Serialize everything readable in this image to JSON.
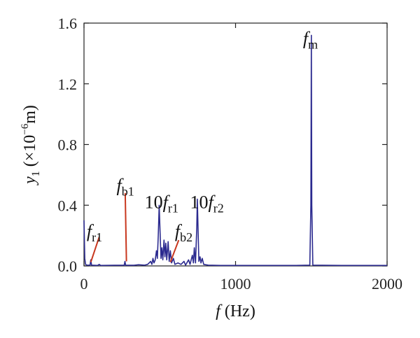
{
  "chart_data": {
    "type": "line",
    "xlabel": {
      "var": "f",
      "unit": "(Hz)"
    },
    "ylabel": {
      "var": "y",
      "sub": "1",
      "unit_open": "(×10",
      "unit_exp": "−6",
      "unit_close": "m)"
    },
    "xlim": [
      0,
      2000
    ],
    "ylim": [
      0,
      1.6
    ],
    "xticks": [
      0,
      1000,
      2000
    ],
    "yticks": [
      0.0,
      0.4,
      0.8,
      1.2,
      1.6
    ],
    "xtick_labels": [
      "0",
      "1000",
      "2000"
    ],
    "ytick_labels": [
      "0.0",
      "0.4",
      "0.8",
      "1.2",
      "1.6"
    ],
    "grid": false,
    "series": [
      {
        "color": "#2b2a8f",
        "points": [
          [
            0,
            0.3
          ],
          [
            5,
            0.05
          ],
          [
            10,
            0.01
          ],
          [
            20,
            0.005
          ],
          [
            40,
            0.005
          ],
          [
            45,
            0.04
          ],
          [
            50,
            0.005
          ],
          [
            90,
            0.003
          ],
          [
            100,
            0.01
          ],
          [
            110,
            0.003
          ],
          [
            200,
            0.004
          ],
          [
            265,
            0.004
          ],
          [
            270,
            0.03
          ],
          [
            275,
            0.004
          ],
          [
            330,
            0.004
          ],
          [
            360,
            0.008
          ],
          [
            400,
            0.005
          ],
          [
            420,
            0.01
          ],
          [
            440,
            0.03
          ],
          [
            448,
            0.01
          ],
          [
            455,
            0.05
          ],
          [
            462,
            0.02
          ],
          [
            470,
            0.04
          ],
          [
            478,
            0.1
          ],
          [
            484,
            0.05
          ],
          [
            490,
            0.2
          ],
          [
            496,
            0.4
          ],
          [
            502,
            0.22
          ],
          [
            508,
            0.05
          ],
          [
            514,
            0.12
          ],
          [
            520,
            0.04
          ],
          [
            528,
            0.17
          ],
          [
            534,
            0.06
          ],
          [
            540,
            0.15
          ],
          [
            546,
            0.04
          ],
          [
            555,
            0.16
          ],
          [
            562,
            0.03
          ],
          [
            570,
            0.1
          ],
          [
            578,
            0.02
          ],
          [
            590,
            0.05
          ],
          [
            600,
            0.01
          ],
          [
            620,
            0.02
          ],
          [
            640,
            0.01
          ],
          [
            660,
            0.03
          ],
          [
            670,
            0.005
          ],
          [
            690,
            0.04
          ],
          [
            700,
            0.01
          ],
          [
            715,
            0.07
          ],
          [
            722,
            0.02
          ],
          [
            728,
            0.12
          ],
          [
            736,
            0.02
          ],
          [
            744,
            0.25
          ],
          [
            748,
            0.44
          ],
          [
            752,
            0.27
          ],
          [
            758,
            0.03
          ],
          [
            766,
            0.06
          ],
          [
            772,
            0.02
          ],
          [
            780,
            0.05
          ],
          [
            790,
            0.01
          ],
          [
            820,
            0.005
          ],
          [
            900,
            0.003
          ],
          [
            1000,
            0.003
          ],
          [
            1200,
            0.003
          ],
          [
            1400,
            0.003
          ],
          [
            1490,
            0.005
          ],
          [
            1497,
            0.4
          ],
          [
            1500,
            1.52
          ],
          [
            1503,
            0.4
          ],
          [
            1510,
            0.005
          ],
          [
            1700,
            0.003
          ],
          [
            1900,
            0.003
          ],
          [
            2000,
            0.003
          ]
        ]
      }
    ],
    "annotations": [
      {
        "base": "f",
        "prefix": "",
        "sub": "m",
        "text_at": [
          1445,
          1.46
        ]
      },
      {
        "base": "f",
        "prefix": "",
        "sub": "r1",
        "text_at": [
          18,
          0.19
        ],
        "pointer": {
          "from": [
            100,
            0.19
          ],
          "to": [
            45,
            0.025
          ]
        }
      },
      {
        "base": "f",
        "prefix": "",
        "sub": "b1",
        "text_at": [
          215,
          0.49
        ],
        "pointer": {
          "from": [
            272,
            0.48
          ],
          "to": [
            280,
            0.03
          ]
        }
      },
      {
        "base": "f",
        "prefix": "10",
        "sub": "r1",
        "text_at": [
          400,
          0.38
        ]
      },
      {
        "base": "f",
        "prefix": "",
        "sub": "b2",
        "text_at": [
          600,
          0.19
        ],
        "pointer": {
          "from": [
            625,
            0.17
          ],
          "to": [
            570,
            0.025
          ]
        }
      },
      {
        "base": "f",
        "prefix": "10",
        "sub": "r2",
        "text_at": [
          700,
          0.38
        ]
      }
    ],
    "pointer_color": "#c8371e"
  }
}
